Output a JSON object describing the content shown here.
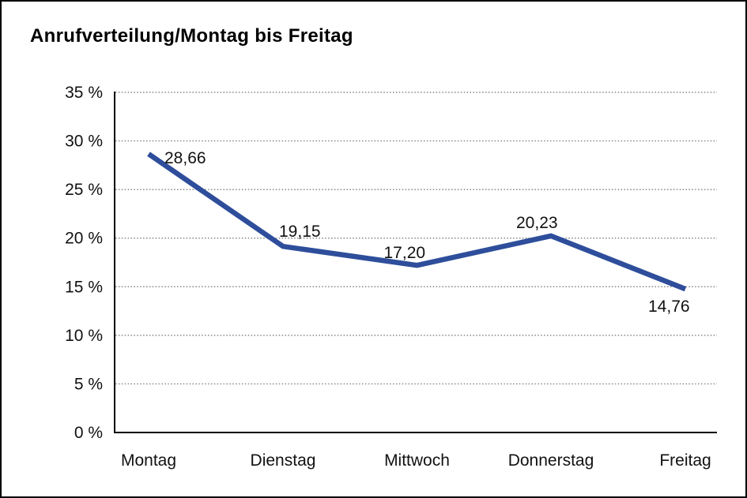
{
  "title": "Anrufverteilung/Montag bis Freitag",
  "chart_data": {
    "type": "line",
    "title": "Anrufverteilung/Montag bis Freitag",
    "categories": [
      "Montag",
      "Dienstag",
      "Mittwoch",
      "Donnerstag",
      "Freitag"
    ],
    "values": [
      28.66,
      19.15,
      17.2,
      20.23,
      14.76
    ],
    "value_labels": [
      "28,66",
      "19,15",
      "17,20",
      "20,23",
      "14,76"
    ],
    "xlabel": "",
    "ylabel": "",
    "ylim": [
      0,
      35
    ],
    "ytick_step": 5,
    "ytick_labels": [
      "0 %",
      "5 %",
      "10 %",
      "15 %",
      "20 %",
      "25 %",
      "30 %",
      "35 %"
    ],
    "grid": "horizontal dotted",
    "legend": "none",
    "series_color": "#2e4e9b"
  },
  "colors": {
    "line": "#2e4e9b",
    "grid": "#6e6e6e",
    "axis": "#000000",
    "frame_border": "#000000",
    "background": "#ffffff",
    "text": "#111111"
  }
}
